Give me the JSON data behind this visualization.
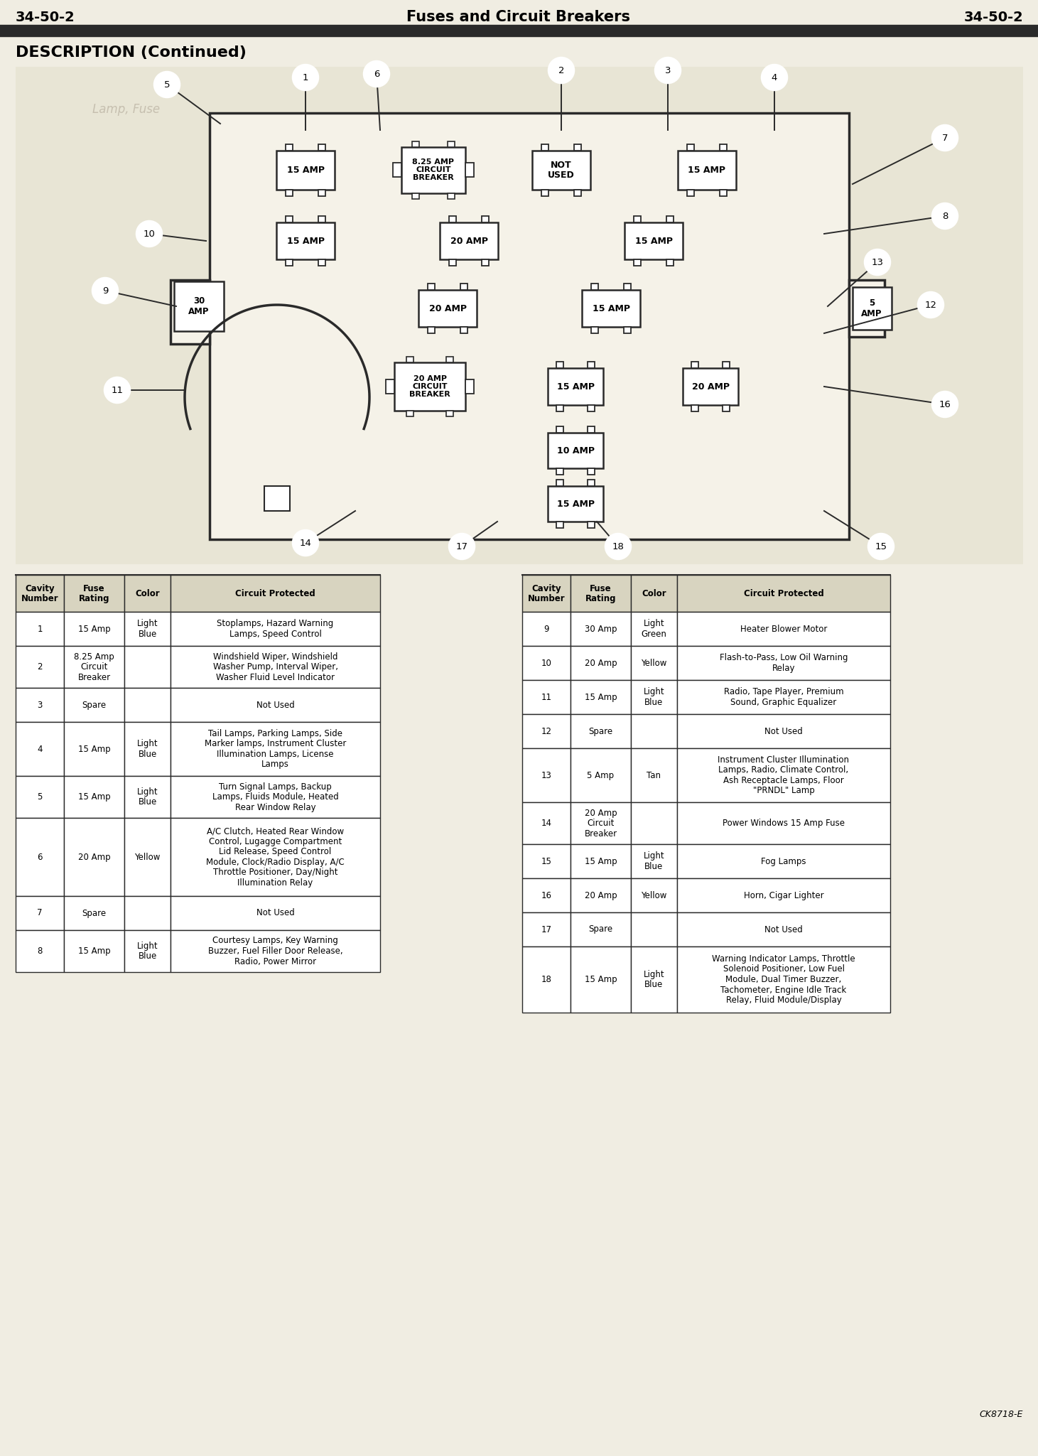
{
  "header_left": "34-50-2",
  "header_center": "Fuses and Circuit Breakers",
  "header_right": "34-50-2",
  "section_title": "DESCRIPTION (Continued)",
  "footnote": "CK8718-E",
  "bg_color": "#e8e4d8",
  "page_color": "#f0ede2",
  "table_cols_left": [
    "Cavity\nNumber",
    "Fuse\nRating",
    "Color",
    "Circuit Protected"
  ],
  "table_cols_right": [
    "Cavity\nNumber",
    "Fuse\nRating",
    "Color",
    "Circuit Protected"
  ],
  "table_data_left": [
    [
      "1",
      "15 Amp",
      "Light\nBlue",
      "Stoplamps, Hazard Warning\nLamps, Speed Control"
    ],
    [
      "2",
      "8.25 Amp\nCircuit\nBreaker",
      "",
      "Windshield Wiper, Windshield\nWasher Pump, Interval Wiper,\nWasher Fluid Level Indicator"
    ],
    [
      "3",
      "Spare",
      "",
      "Not Used"
    ],
    [
      "4",
      "15 Amp",
      "Light\nBlue",
      "Tail Lamps, Parking Lamps, Side\nMarker lamps, Instrument Cluster\nIllumination Lamps, License\nLamps"
    ],
    [
      "5",
      "15 Amp",
      "Light\nBlue",
      "Turn Signal Lamps, Backup\nLamps, Fluids Module, Heated\nRear Window Relay"
    ],
    [
      "6",
      "20 Amp",
      "Yellow",
      "A/C Clutch, Heated Rear Window\nControl, Lugagge Compartment\nLid Release, Speed Control\nModule, Clock/Radio Display, A/C\nThrottle Positioner, Day/Night\nIllumination Relay"
    ],
    [
      "7",
      "Spare",
      "",
      "Not Used"
    ],
    [
      "8",
      "15 Amp",
      "Light\nBlue",
      "Courtesy Lamps, Key Warning\nBuzzer, Fuel Filler Door Release,\nRadio, Power Mirror"
    ]
  ],
  "table_data_right": [
    [
      "9",
      "30 Amp",
      "Light\nGreen",
      "Heater Blower Motor"
    ],
    [
      "10",
      "20 Amp",
      "Yellow",
      "Flash-to-Pass, Low Oil Warning\nRelay"
    ],
    [
      "11",
      "15 Amp",
      "Light\nBlue",
      "Radio, Tape Player, Premium\nSound, Graphic Equalizer"
    ],
    [
      "12",
      "Spare",
      "",
      "Not Used"
    ],
    [
      "13",
      "5 Amp",
      "Tan",
      "Instrument Cluster Illumination\nLamps, Radio, Climate Control,\nAsh Receptacle Lamps, Floor\n\"PRNDL\" Lamp"
    ],
    [
      "14",
      "20 Amp\nCircuit\nBreaker",
      "",
      "Power Windows 15 Amp Fuse"
    ],
    [
      "15",
      "15 Amp",
      "Light\nBlue",
      "Fog Lamps"
    ],
    [
      "16",
      "20 Amp",
      "Yellow",
      "Horn, Cigar Lighter"
    ],
    [
      "17",
      "Spare",
      "",
      "Not Used"
    ],
    [
      "18",
      "15 Amp",
      "Light\nBlue",
      "Warning Indicator Lamps, Throttle\nSolenoid Positioner, Low Fuel\nModule, Dual Timer Buzzer,\nTachometer, Engine Idle Track\nRelay, Fluid Module/Display"
    ]
  ]
}
